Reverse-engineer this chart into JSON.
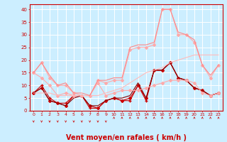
{
  "background_color": "#cceeff",
  "grid_color": "#ffffff",
  "xlabel": "Vent moyen/en rafales ( km/h )",
  "xlabel_color": "#cc0000",
  "xlabel_fontsize": 7,
  "tick_color": "#cc0000",
  "yticks": [
    0,
    5,
    10,
    15,
    20,
    25,
    30,
    35,
    40
  ],
  "xticks": [
    0,
    1,
    2,
    3,
    4,
    5,
    6,
    7,
    8,
    9,
    10,
    11,
    12,
    13,
    14,
    15,
    16,
    17,
    18,
    19,
    20,
    21,
    22,
    23
  ],
  "xlim": [
    -0.5,
    23.5
  ],
  "ylim": [
    0,
    42
  ],
  "lines": [
    {
      "x": [
        0,
        1,
        2,
        3,
        4,
        5,
        6,
        7,
        8,
        9,
        10,
        11,
        12,
        13,
        14,
        15,
        16,
        17,
        18,
        19,
        20,
        21,
        22,
        23
      ],
      "y": [
        7,
        10,
        5,
        3,
        3,
        6,
        6,
        1,
        1,
        4,
        5,
        4,
        4,
        10,
        4,
        16,
        16,
        19,
        13,
        12,
        9,
        8,
        6,
        7
      ],
      "color": "#cc0000",
      "linewidth": 0.8,
      "marker": "+",
      "markersize": 3
    },
    {
      "x": [
        0,
        1,
        2,
        3,
        4,
        5,
        6,
        7,
        8,
        9,
        10,
        11,
        12,
        13,
        14,
        15,
        16,
        17,
        18,
        19,
        20,
        21,
        22,
        23
      ],
      "y": [
        7,
        9,
        4,
        3,
        2,
        6,
        6,
        2,
        1,
        4,
        5,
        4,
        5,
        10,
        5,
        16,
        16,
        19,
        13,
        12,
        9,
        8,
        6,
        7
      ],
      "color": "#cc0000",
      "linewidth": 0.8,
      "marker": "D",
      "markersize": 2
    },
    {
      "x": [
        0,
        1,
        2,
        3,
        4,
        5,
        6,
        7,
        8,
        9,
        10,
        11,
        12,
        13,
        14,
        15,
        16,
        17,
        18,
        19,
        20,
        21,
        22,
        23
      ],
      "y": [
        7,
        9,
        4,
        3,
        2,
        5,
        6,
        2,
        2,
        4,
        5,
        5,
        6,
        11,
        5,
        16,
        16,
        19,
        13,
        12,
        9,
        8,
        6,
        7
      ],
      "color": "#880000",
      "linewidth": 0.8,
      "marker": null,
      "markersize": 0
    },
    {
      "x": [
        0,
        1,
        2,
        3,
        4,
        5,
        6,
        7,
        8,
        9,
        10,
        11,
        12,
        13,
        14,
        15,
        16,
        17,
        18,
        19,
        20,
        21,
        22,
        23
      ],
      "y": [
        15,
        19,
        13,
        10,
        10,
        7,
        6,
        6,
        12,
        11,
        12,
        12,
        24,
        25,
        25,
        26,
        40,
        40,
        30,
        30,
        27,
        18,
        13,
        18
      ],
      "color": "#ffaaaa",
      "linewidth": 0.8,
      "marker": "D",
      "markersize": 2
    },
    {
      "x": [
        0,
        1,
        2,
        3,
        4,
        5,
        6,
        7,
        8,
        9,
        10,
        11,
        12,
        13,
        14,
        15,
        16,
        17,
        18,
        19,
        20,
        21,
        22,
        23
      ],
      "y": [
        15,
        13,
        10,
        6,
        7,
        6,
        6,
        6,
        11,
        6,
        7,
        8,
        8,
        8,
        9,
        10,
        11,
        12,
        12,
        12,
        11,
        7,
        6,
        7
      ],
      "color": "#ffaaaa",
      "linewidth": 0.8,
      "marker": "D",
      "markersize": 2
    },
    {
      "x": [
        0,
        1,
        2,
        3,
        4,
        5,
        6,
        7,
        8,
        9,
        10,
        11,
        12,
        13,
        14,
        15,
        16,
        17,
        18,
        19,
        20,
        21,
        22,
        23
      ],
      "y": [
        7,
        7,
        7,
        6,
        6,
        6,
        6,
        6,
        6,
        7,
        8,
        9,
        11,
        13,
        15,
        16,
        17,
        19,
        20,
        21,
        22,
        22,
        22,
        22
      ],
      "color": "#ffbbbb",
      "linewidth": 0.8,
      "marker": null,
      "markersize": 0
    },
    {
      "x": [
        0,
        1,
        2,
        3,
        4,
        5,
        6,
        7,
        8,
        9,
        10,
        11,
        12,
        13,
        14,
        15,
        16,
        17,
        18,
        19,
        20,
        21,
        22,
        23
      ],
      "y": [
        15,
        19,
        14,
        10,
        11,
        7,
        7,
        6,
        12,
        12,
        13,
        13,
        25,
        26,
        26,
        27,
        40,
        40,
        31,
        30,
        28,
        18,
        14,
        18
      ],
      "color": "#ff8888",
      "linewidth": 0.8,
      "marker": null,
      "markersize": 0
    }
  ],
  "wind_arrows_down": [
    0,
    1,
    2,
    3,
    4,
    5,
    6,
    7,
    8,
    9
  ],
  "wind_arrows_up": [
    10,
    11,
    12,
    13,
    14,
    15,
    16,
    17,
    18,
    19,
    20,
    21,
    22,
    23
  ]
}
